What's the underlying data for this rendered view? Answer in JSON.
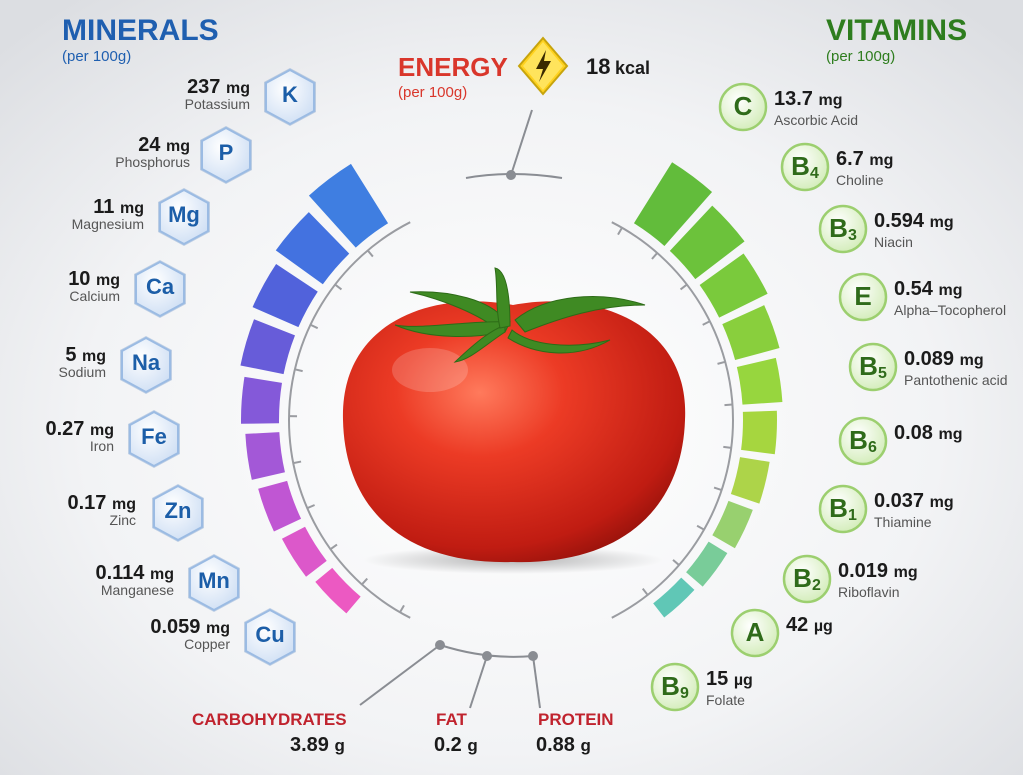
{
  "minerals": {
    "title": "MINERALS",
    "subtitle": "(per 100g)",
    "items": [
      {
        "symbol": "K",
        "value": "237",
        "unit": "mg",
        "name": "Potassium"
      },
      {
        "symbol": "P",
        "value": "24",
        "unit": "mg",
        "name": "Phosphorus"
      },
      {
        "symbol": "Mg",
        "value": "11",
        "unit": "mg",
        "name": "Magnesium"
      },
      {
        "symbol": "Ca",
        "value": "10",
        "unit": "mg",
        "name": "Calcium"
      },
      {
        "symbol": "Na",
        "value": "5",
        "unit": "mg",
        "name": "Sodium"
      },
      {
        "symbol": "Fe",
        "value": "0.27",
        "unit": "mg",
        "name": "Iron"
      },
      {
        "symbol": "Zn",
        "value": "0.17",
        "unit": "mg",
        "name": "Zinc"
      },
      {
        "symbol": "Mn",
        "value": "0.114",
        "unit": "mg",
        "name": "Manganese"
      },
      {
        "symbol": "Cu",
        "value": "0.059",
        "unit": "mg",
        "name": "Copper"
      }
    ]
  },
  "vitamins": {
    "title": "VITAMINS",
    "subtitle": "(per 100g)",
    "items": [
      {
        "letter": "C",
        "sub": "",
        "value": "13.7",
        "unit": "mg",
        "name": "Ascorbic Acid"
      },
      {
        "letter": "B",
        "sub": "4",
        "value": "6.7",
        "unit": "mg",
        "name": "Choline"
      },
      {
        "letter": "B",
        "sub": "3",
        "value": "0.594",
        "unit": "mg",
        "name": "Niacin"
      },
      {
        "letter": "E",
        "sub": "",
        "value": "0.54",
        "unit": "mg",
        "name": "Alpha–Tocopherol"
      },
      {
        "letter": "B",
        "sub": "5",
        "value": "0.089",
        "unit": "mg",
        "name": "Pantothenic acid"
      },
      {
        "letter": "B",
        "sub": "6",
        "value": "0.08",
        "unit": "mg",
        "name": ""
      },
      {
        "letter": "B",
        "sub": "1",
        "value": "0.037",
        "unit": "mg",
        "name": "Thiamine"
      },
      {
        "letter": "B",
        "sub": "2",
        "value": "0.019",
        "unit": "mg",
        "name": "Riboflavin"
      },
      {
        "letter": "A",
        "sub": "",
        "value": "42",
        "unit": "µg",
        "name": ""
      },
      {
        "letter": "B",
        "sub": "9",
        "value": "15",
        "unit": "µg",
        "name": "Folate"
      }
    ]
  },
  "energy": {
    "label": "ENERGY",
    "subtitle": "(per 100g)",
    "value": "18",
    "unit": "kcal",
    "icon": "lightning-icon"
  },
  "macros": [
    {
      "label": "CARBOHYDRATES",
      "value": "3.89",
      "unit": "g"
    },
    {
      "label": "FAT",
      "value": "0.2",
      "unit": "g"
    },
    {
      "label": "PROTEIN",
      "value": "0.88",
      "unit": "g"
    }
  ],
  "colors": {
    "minerals_title": "#1f5fb0",
    "vitamins_title": "#2e7d1e",
    "energy": "#d9362b",
    "macro_label": "#c0232e",
    "tomato": "#e0321f"
  }
}
